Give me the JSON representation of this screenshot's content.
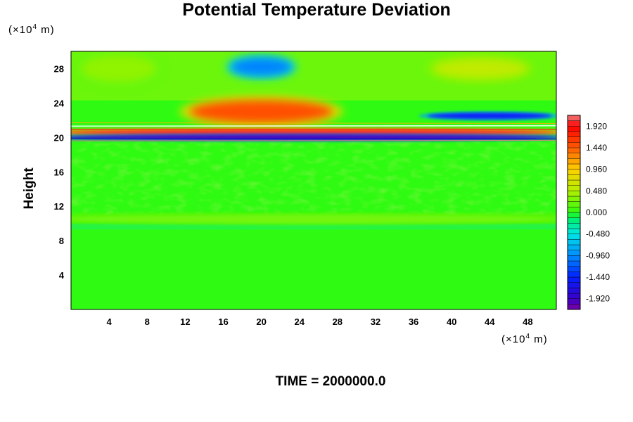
{
  "title": "Potential Temperature Deviation",
  "time_label": "TIME = 2000000.0",
  "chart_data": {
    "type": "heatmap",
    "title": "Potential Temperature Deviation",
    "ylabel": "Height",
    "xlabel": "",
    "x_unit": {
      "prefix": "(×10",
      "exp": "4",
      "suffix": " m)"
    },
    "y_unit": {
      "prefix": "(×10",
      "exp": "4",
      "suffix": " m)"
    },
    "xlim": [
      0,
      51
    ],
    "ylim": [
      0,
      30
    ],
    "x_ticks": [
      4,
      8,
      12,
      16,
      20,
      24,
      28,
      32,
      36,
      40,
      44,
      48
    ],
    "y_ticks": [
      4,
      8,
      12,
      16,
      20,
      24,
      28
    ],
    "colorbar": {
      "min": -2.16,
      "max": 2.16,
      "step": 0.12,
      "tick_labels": [
        "1.920",
        "1.440",
        "0.960",
        "0.480",
        "0.000",
        "-0.480",
        "-0.960",
        "-1.440",
        "-1.920"
      ],
      "tick_values": [
        1.92,
        1.44,
        0.96,
        0.48,
        0.0,
        -0.48,
        -0.96,
        -1.44,
        -1.92
      ]
    },
    "features": [
      {
        "x": 20,
        "y": 28.2,
        "value": -1.0
      },
      {
        "x": 43,
        "y": 28.0,
        "value": 0.55
      },
      {
        "x": 5,
        "y": 28.0,
        "value": 0.35
      },
      {
        "x": 20,
        "y": 23.0,
        "value": 1.5
      },
      {
        "x": 44,
        "y": 22.5,
        "value": -1.5
      },
      {
        "x": 25,
        "y": 20.6,
        "value": 2.0
      },
      {
        "x": 25,
        "y": 20.0,
        "value": -2.0
      },
      {
        "x": 25,
        "y": 10.5,
        "value": 0.25
      }
    ]
  }
}
